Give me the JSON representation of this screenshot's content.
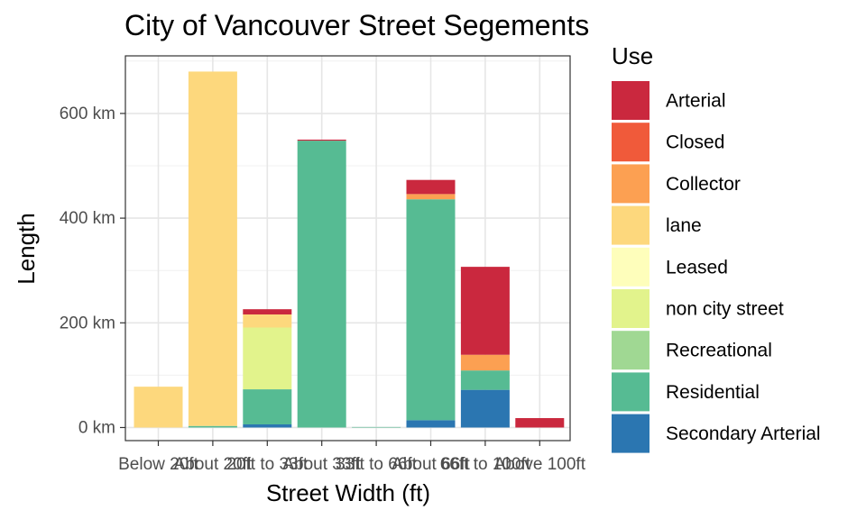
{
  "chart_data": {
    "type": "bar",
    "stacked": true,
    "title": "City of Vancouver Street Segements",
    "xlabel": "Street Width (ft)",
    "ylabel": "Length",
    "ylim": [
      -25,
      710
    ],
    "yticks": [
      0,
      200,
      400,
      600
    ],
    "ytick_labels": [
      "0 km",
      "200 km",
      "400 km",
      "600 km"
    ],
    "categories": [
      "Below 20ft",
      "About 20ft",
      "20ft to 33ft",
      "About 33ft",
      "33ft to 66ft",
      "About 66ft",
      "66ft to 100ft",
      "Above 100ft"
    ],
    "legend_title": "Use",
    "legend_position": "right",
    "grid": true,
    "series": [
      {
        "name": "Arterial",
        "color": "#CA283E",
        "values": [
          0,
          0,
          10,
          2,
          0,
          27,
          168,
          18
        ]
      },
      {
        "name": "Closed",
        "color": "#F05A3A",
        "values": [
          0,
          0,
          0,
          0,
          0,
          0,
          0,
          0
        ]
      },
      {
        "name": "Collector",
        "color": "#FCA052",
        "values": [
          0,
          0,
          0,
          0,
          0,
          10,
          30,
          0
        ]
      },
      {
        "name": "lane",
        "color": "#FDD87D",
        "values": [
          78,
          677,
          25,
          0,
          0,
          0,
          0,
          0
        ]
      },
      {
        "name": "Leased",
        "color": "#FEFEBB",
        "values": [
          0,
          0,
          0,
          0,
          0,
          0,
          0,
          0
        ]
      },
      {
        "name": "non city street",
        "color": "#E2F38C",
        "values": [
          0,
          0,
          118,
          0,
          0,
          0,
          0,
          0
        ]
      },
      {
        "name": "Recreational",
        "color": "#A0D893",
        "values": [
          0,
          0,
          0,
          0,
          0,
          0,
          0,
          0
        ]
      },
      {
        "name": "Residential",
        "color": "#56BB93",
        "values": [
          0,
          3,
          67,
          548,
          1,
          422,
          37,
          0
        ]
      },
      {
        "name": "Secondary Arterial",
        "color": "#2B76B1",
        "values": [
          0,
          0,
          6,
          0,
          0,
          14,
          72,
          0
        ]
      }
    ]
  }
}
